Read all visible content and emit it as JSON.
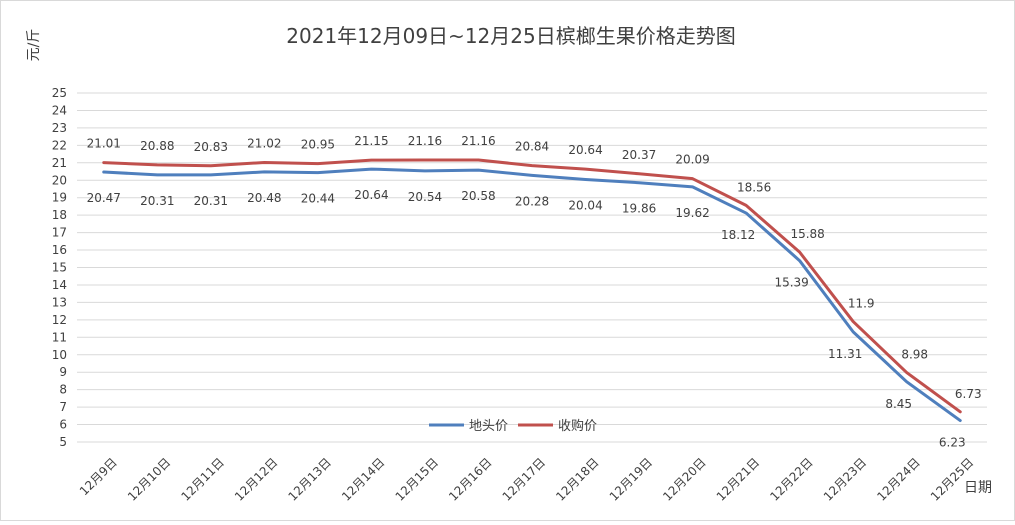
{
  "chart_data": {
    "type": "line",
    "title": "2021年12月09日~12月25日槟榔生果价格走势图",
    "ylabel": "元/斤",
    "xlabel": "日期",
    "ylim": [
      5,
      25
    ],
    "yticks": [
      5,
      6,
      7,
      8,
      9,
      10,
      11,
      12,
      13,
      14,
      15,
      16,
      17,
      18,
      19,
      20,
      21,
      22,
      23,
      24,
      25
    ],
    "grid": true,
    "legend_position": "bottom-center",
    "categories": [
      "12月9日",
      "12月10日",
      "12月11日",
      "12月12日",
      "12月13日",
      "12月14日",
      "12月15日",
      "12月16日",
      "12月17日",
      "12月18日",
      "12月19日",
      "12月20日",
      "12月21日",
      "12月22日",
      "12月23日",
      "12月24日",
      "12月25日"
    ],
    "series": [
      {
        "name": "地头价",
        "color": "#4f7fbd",
        "values": [
          20.47,
          20.31,
          20.31,
          20.48,
          20.44,
          20.64,
          20.54,
          20.58,
          20.28,
          20.04,
          19.86,
          19.62,
          18.12,
          15.39,
          11.31,
          8.45,
          6.23
        ],
        "labels": [
          "20.47",
          "20.31",
          "20.31",
          "20.48",
          "20.44",
          "20.64",
          "20.54",
          "20.58",
          "20.28",
          "20.04",
          "19.86",
          "19.62",
          "18.12",
          "15.39",
          "11.31",
          "8.45",
          "6.23"
        ]
      },
      {
        "name": "收购价",
        "color": "#c0504d",
        "values": [
          21.01,
          20.88,
          20.83,
          21.02,
          20.95,
          21.15,
          21.16,
          21.16,
          20.84,
          20.64,
          20.37,
          20.09,
          18.56,
          15.88,
          11.9,
          8.98,
          6.73
        ],
        "labels": [
          "21.01",
          "20.88",
          "20.83",
          "21.02",
          "20.95",
          "21.15",
          "21.16",
          "21.16",
          "20.84",
          "20.64",
          "20.37",
          "20.09",
          "18.56",
          "15.88",
          "11.9",
          "8.98",
          "6.73"
        ]
      }
    ]
  }
}
